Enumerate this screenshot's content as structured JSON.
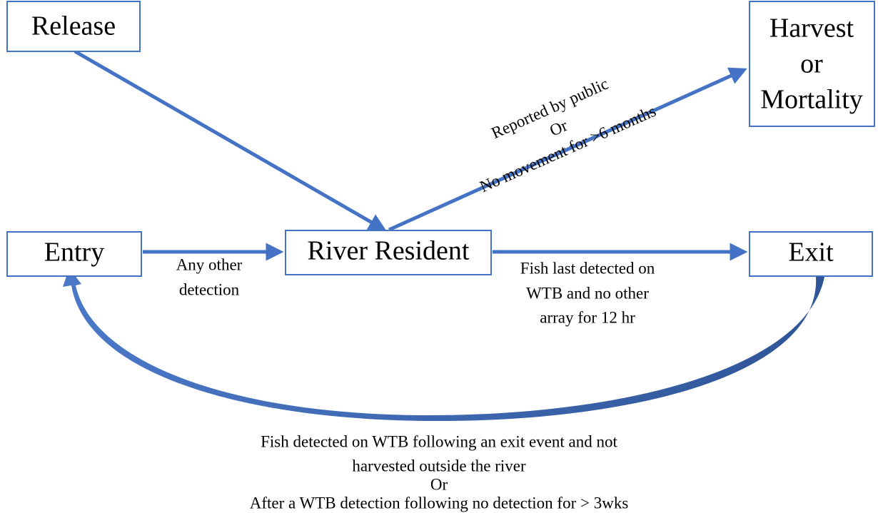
{
  "nodes": [
    {
      "lines": [
        "Release"
      ]
    },
    {
      "lines": [
        "Harvest",
        "or",
        "Mortality"
      ]
    },
    {
      "lines": [
        "Entry"
      ]
    },
    {
      "lines": [
        "River Resident"
      ]
    },
    {
      "lines": [
        "Exit"
      ]
    }
  ],
  "edges": [
    {
      "lines": [
        "Reported by public",
        "Or",
        "No movement for >6 months"
      ]
    },
    {
      "lines": [
        "Any other",
        "detection"
      ]
    },
    {
      "lines": [
        "Fish last detected on",
        "WTB and no other",
        "array for 12 hr"
      ]
    },
    {
      "lines": [
        "Fish detected on WTB following an exit event and not",
        "harvested outside the river",
        "Or",
        "After a WTB detection following no detection for > 3wks"
      ]
    }
  ]
}
